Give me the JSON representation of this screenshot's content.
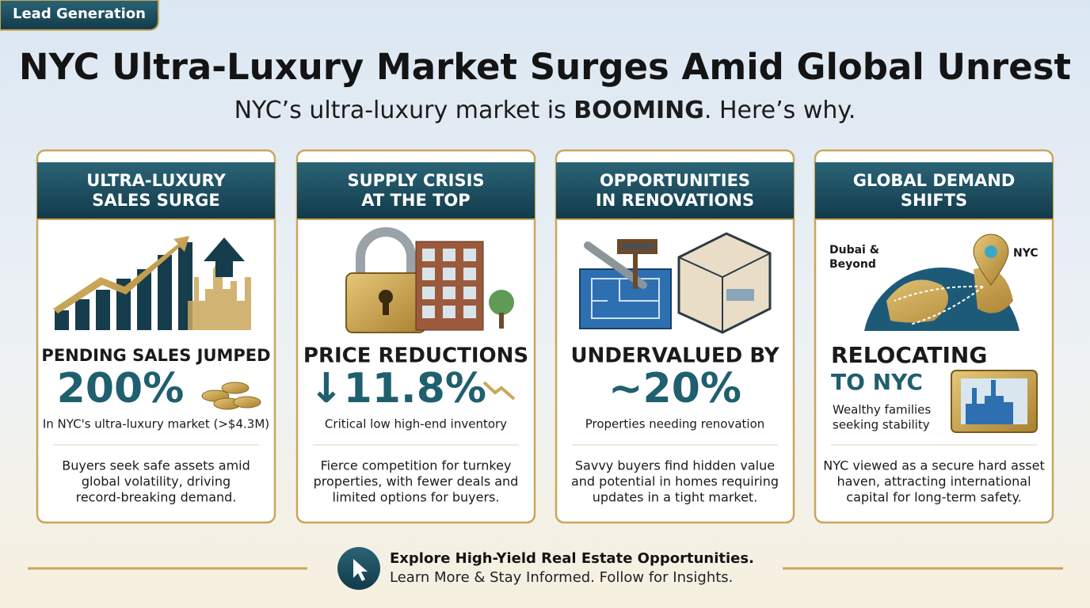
{
  "badge": "Lead Generation",
  "title": "NYC Ultra-Luxury Market Surges Amid Global Unrest",
  "subtitle": {
    "before": "NYC’s ultra-luxury market is ",
    "bold": "BOOMING",
    "after": ". Here’s why."
  },
  "cards": [
    {
      "header": [
        "ULTRA-LUXURY",
        "SALES SURGE"
      ],
      "headline": [
        "PENDING SALES JUMPED"
      ],
      "stat": "200%",
      "note": [
        "In NYC's ultra-luxury market (>$4.3M)"
      ],
      "body": [
        "Buyers seek safe assets amid",
        "global volatility, driving",
        "record-breaking demand."
      ]
    },
    {
      "header": [
        "SUPPLY CRISIS",
        "AT THE TOP"
      ],
      "headline": [
        "PRICE REDUCTIONS"
      ],
      "stat": "↓11.8%",
      "note": [
        "Critical low high-end inventory"
      ],
      "body": [
        "Fierce competition for turnkey",
        "properties, with fewer deals and",
        "limited options for buyers."
      ]
    },
    {
      "header": [
        "OPPORTUNITIES",
        "IN RENOVATIONS"
      ],
      "headline": [
        "UNDERVALUED BY"
      ],
      "stat": "~20%",
      "note": [
        "Properties needing renovation"
      ],
      "body": [
        "Savvy buyers find hidden value",
        "and potential in homes requiring",
        "updates in a tight market."
      ]
    },
    {
      "header": [
        "GLOBAL DEMAND",
        "SHIFTS"
      ],
      "map_labels": [
        "Dubai &",
        "Beyond",
        "NYC"
      ],
      "headline": [
        "RELOCATING",
        "TO NYC"
      ],
      "note": [
        "Wealthy families",
        "seeking stability"
      ],
      "body": [
        "NYC viewed as a secure hard asset",
        "haven, attracting international",
        "capital for long-term safety."
      ]
    }
  ],
  "footer": {
    "line1": "Explore High-Yield Real Estate Opportunities.",
    "line2": "Learn More & Stay Informed. Follow for Insights."
  }
}
